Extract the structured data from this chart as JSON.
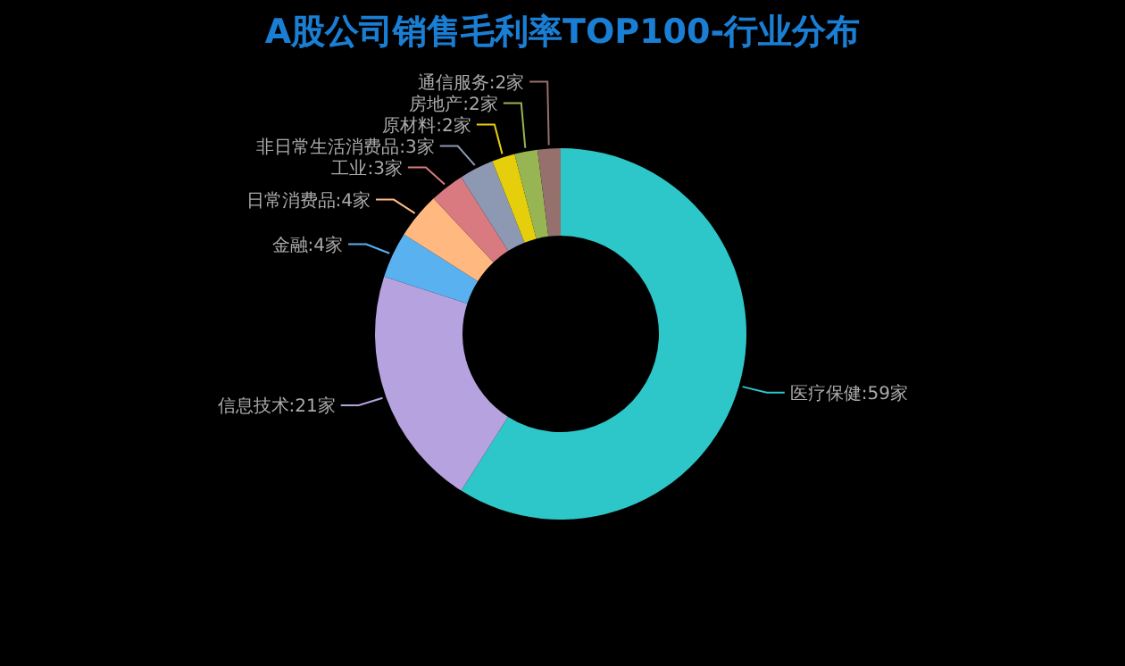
{
  "chart_data": {
    "type": "donut",
    "title": "A股公司销售毛利率TOP100-行业分布",
    "categories": [
      "医疗保健:59家",
      "信息技术:21家",
      "金融:4家",
      "日常消费品:4家",
      "工业:3家",
      "非日常生活消费品:3家",
      "原材料:2家",
      "房地产:2家",
      "通信服务:2家"
    ],
    "values": [
      59,
      21,
      4,
      4,
      3,
      3,
      2,
      2,
      2
    ],
    "colors": [
      "#2ec7c9",
      "#b6a2de",
      "#5ab1ef",
      "#ffb980",
      "#d87a80",
      "#8d98b3",
      "#e5cf0d",
      "#97b552",
      "#95706d"
    ]
  }
}
